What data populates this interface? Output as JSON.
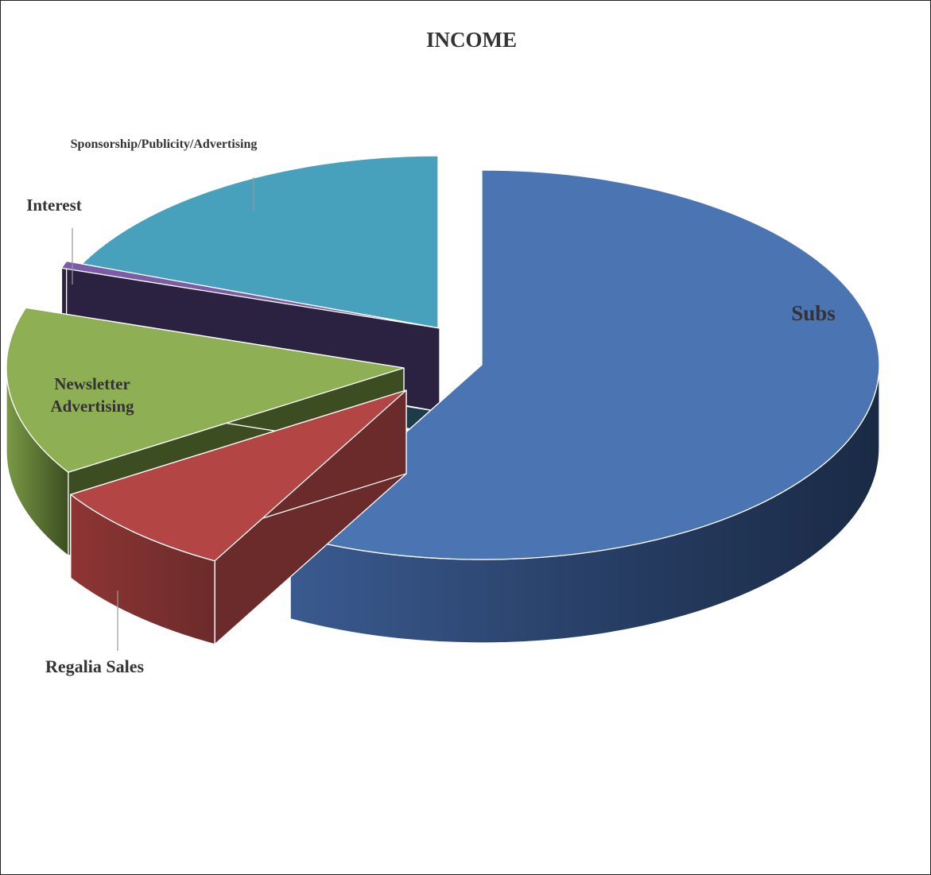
{
  "chart_data": {
    "type": "pie",
    "title": "INCOME",
    "style": "3d-exploded",
    "slices": [
      {
        "label": "Subs",
        "value": 58,
        "color": "#4A74B2",
        "side_color": "#1D2B47",
        "label_lines": [
          "Subs"
        ]
      },
      {
        "label": "Regalia Sales",
        "value": 8,
        "color": "#B34544",
        "side_color": "#6B2B2A",
        "label_lines": [
          "Regalia Sales"
        ]
      },
      {
        "label": "Newsletter Advertising",
        "value": 14,
        "color": "#8FAF55",
        "side_color": "#3C4D22",
        "label_lines": [
          "Newsletter",
          "Advertising"
        ]
      },
      {
        "label": "Interest",
        "value": 0.6,
        "color": "#7A5DA6",
        "side_color": "#2B2140",
        "label_lines": [
          "Interest"
        ]
      },
      {
        "label": "Sponsorship/Publicity/Advertising",
        "value": 19.4,
        "color": "#48A1BC",
        "side_color": "#1B3C48",
        "label_lines": [
          "Sponsorship/Publicity/Advertising"
        ]
      }
    ]
  }
}
